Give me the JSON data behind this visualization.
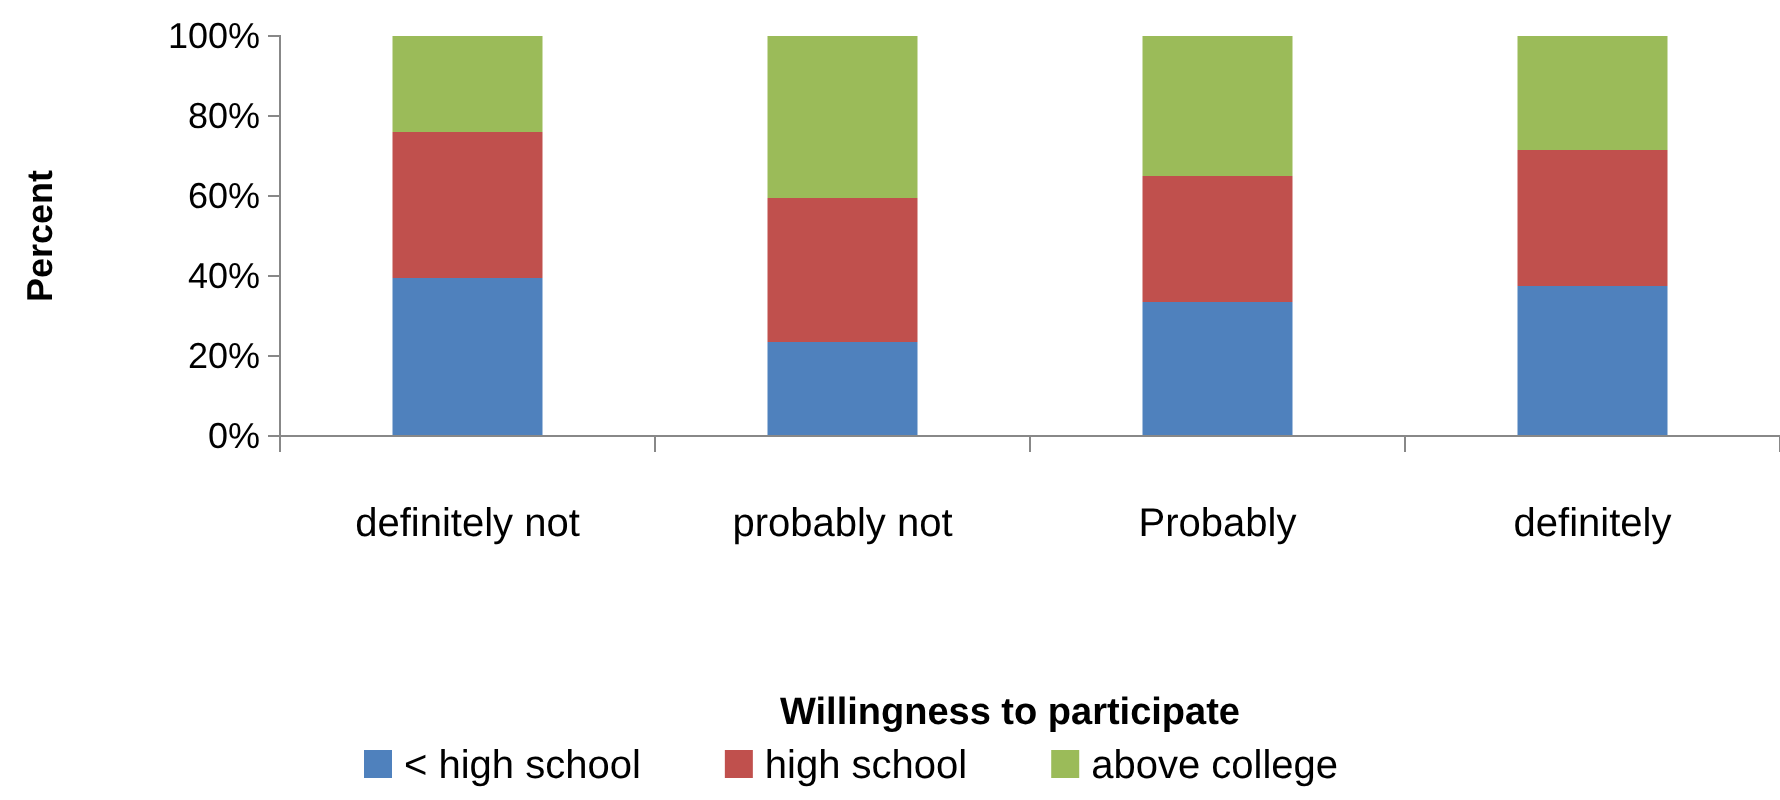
{
  "chart_data": {
    "type": "bar",
    "stacked": true,
    "xlabel": "Willingness to participate",
    "ylabel": "Percent",
    "categories": [
      "definitely not",
      "probably not",
      "Probably",
      "definitely"
    ],
    "series": [
      {
        "name": "< high school",
        "color": "#4f81bd",
        "values": [
          39.5,
          23.5,
          33.5,
          37.5
        ]
      },
      {
        "name": "high school",
        "color": "#c0504d",
        "values": [
          36.5,
          36,
          31.5,
          34
        ]
      },
      {
        "name": "above college",
        "color": "#9bbb59",
        "values": [
          24,
          40.5,
          35,
          28.5
        ]
      }
    ],
    "ylim": [
      0,
      100
    ],
    "yticks": [
      {
        "value": 0,
        "label": "0%"
      },
      {
        "value": 20,
        "label": "20%"
      },
      {
        "value": 40,
        "label": "40%"
      },
      {
        "value": 60,
        "label": "60%"
      },
      {
        "value": 80,
        "label": "80%"
      },
      {
        "value": 100,
        "label": "100%"
      }
    ],
    "legend": "bottom",
    "grid": false
  }
}
